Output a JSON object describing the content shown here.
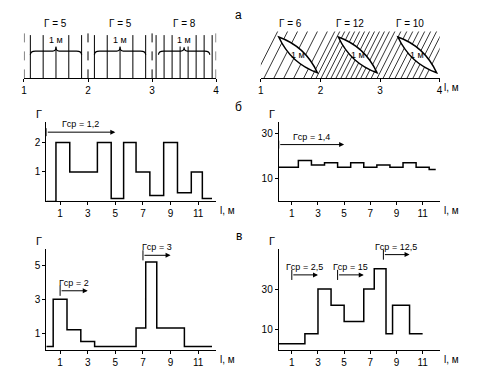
{
  "panel_labels": [
    "а",
    "б",
    "в"
  ],
  "chart_data": [
    {
      "type": "strands",
      "line_style": "vertical",
      "segments": [
        {
          "value": 5,
          "label": "Г = 5"
        },
        {
          "value": 5,
          "label": "Г = 5"
        },
        {
          "value": 8,
          "label": "Г = 8"
        }
      ],
      "segment_label": "1 м",
      "xlim": [
        1,
        4
      ],
      "xticks": [
        1,
        2,
        3,
        4
      ]
    },
    {
      "type": "strands",
      "line_style": "diagonal",
      "segments": [
        {
          "value": 6,
          "label": "Г = 6"
        },
        {
          "value": 12,
          "label": "Г = 12"
        },
        {
          "value": 10,
          "label": "Г = 10"
        }
      ],
      "segment_label": "1 м",
      "x_label": "l, м",
      "xlim": [
        1,
        4
      ],
      "xticks": [
        1,
        2,
        3,
        4
      ]
    },
    {
      "type": "step",
      "y_label": "Г",
      "x_label": "l, м",
      "bins": [
        0,
        0.7,
        1.7,
        3.7,
        4.7,
        5.6,
        6.5,
        7.5,
        8.5,
        9.5,
        10.5,
        11.3,
        12
      ],
      "values": [
        0,
        2,
        1,
        2,
        0.1,
        2,
        1,
        0.2,
        2,
        0.3,
        1,
        0.1
      ],
      "xlim": [
        0,
        12.3
      ],
      "xticks": [
        1,
        3,
        5,
        7,
        9,
        11
      ],
      "ylim": [
        0,
        2.7
      ],
      "yticks": [
        1,
        2
      ],
      "annotations": [
        {
          "text": "Гср = 1,2",
          "x0": 0,
          "x1": 5,
          "y": 2.35
        }
      ]
    },
    {
      "type": "step",
      "y_label": "Г",
      "x_label": "l, м",
      "bins": [
        0,
        1.5,
        2.5,
        3.5,
        4.5,
        5.5,
        6.5,
        7.5,
        8.5,
        9.5,
        10.5,
        11.5,
        12
      ],
      "values": [
        15,
        18,
        16,
        17,
        15,
        17,
        15,
        16,
        15,
        17,
        15,
        14
      ],
      "xlim": [
        0,
        12.3
      ],
      "xticks": [
        1,
        3,
        5,
        7,
        9,
        11
      ],
      "ylim": [
        0,
        35
      ],
      "yticks": [
        10,
        30
      ],
      "annotations": [
        {
          "text": "Гср = 1,4",
          "x0": 0,
          "x1": 5,
          "y": 25
        }
      ]
    },
    {
      "type": "step",
      "y_label": "Г",
      "x_label": "l, м",
      "bins": [
        0,
        0.5,
        1.5,
        2.5,
        3.5,
        6.5,
        7.2,
        8,
        10,
        12
      ],
      "values": [
        0.2,
        3,
        1.2,
        0.5,
        0.2,
        1.3,
        5.2,
        1.3,
        0.2
      ],
      "xlim": [
        0,
        12.3
      ],
      "xticks": [
        1,
        3,
        5,
        7,
        9,
        11
      ],
      "ylim": [
        0,
        6
      ],
      "yticks": [
        1,
        3,
        5
      ],
      "annotations": [
        {
          "text": "Гср = 2",
          "x0": 1,
          "x1": 3,
          "y": 3.5
        },
        {
          "text": "Гср = 3",
          "x0": 7,
          "x1": 9,
          "y": 5.6
        }
      ]
    },
    {
      "type": "step",
      "y_label": "Г",
      "x_label": "l, м",
      "bins": [
        0,
        2,
        3,
        4,
        5,
        6.5,
        7.3,
        8.2,
        8.7,
        10,
        11
      ],
      "values": [
        3,
        8,
        30,
        22,
        14,
        30,
        40,
        8,
        22,
        8
      ],
      "xlim": [
        0,
        12.3
      ],
      "xticks": [
        1,
        3,
        5,
        7,
        9,
        11
      ],
      "ylim": [
        0,
        50
      ],
      "yticks": [
        10,
        30
      ],
      "annotations": [
        {
          "text": "Гср = 2,5",
          "x0": 1,
          "x1": 3,
          "y": 37
        },
        {
          "text": "Гср = 15",
          "x0": 4.5,
          "x1": 6.5,
          "y": 37
        },
        {
          "text": "Гср = 12,5",
          "x0": 8,
          "x1": 10,
          "y": 47
        }
      ]
    }
  ]
}
